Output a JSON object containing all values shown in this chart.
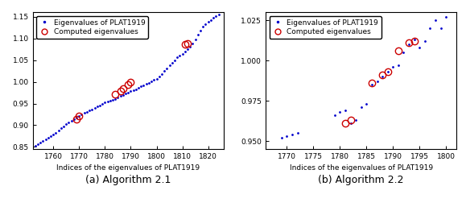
{
  "plot_a": {
    "caption": "(a) Algorithm 2.1",
    "xlabel": "Indices of the eigenvalues of PLAT1919",
    "xlim": [
      1752,
      1826
    ],
    "ylim": [
      0.845,
      1.16
    ],
    "xticks": [
      1760,
      1770,
      1780,
      1790,
      1800,
      1810,
      1820
    ],
    "yticks": [
      0.85,
      0.9,
      0.95,
      1.0,
      1.05,
      1.1,
      1.15
    ],
    "bg_dots_x": [
      1753,
      1754,
      1755,
      1756,
      1757,
      1758,
      1759,
      1760,
      1761,
      1762,
      1763,
      1764,
      1765,
      1766,
      1767,
      1768,
      1769,
      1770,
      1771,
      1772,
      1773,
      1774,
      1775,
      1776,
      1777,
      1778,
      1779,
      1780,
      1781,
      1782,
      1783,
      1784,
      1785,
      1786,
      1787,
      1788,
      1789,
      1790,
      1791,
      1792,
      1793,
      1794,
      1795,
      1796,
      1797,
      1798,
      1799,
      1800,
      1801,
      1802,
      1803,
      1804,
      1805,
      1806,
      1807,
      1808,
      1809,
      1810,
      1811,
      1812,
      1813,
      1814,
      1815,
      1816,
      1817,
      1818,
      1819,
      1820,
      1821,
      1822,
      1823,
      1824
    ],
    "bg_dots_y": [
      0.852,
      0.856,
      0.86,
      0.864,
      0.868,
      0.872,
      0.875,
      0.879,
      0.883,
      0.887,
      0.893,
      0.897,
      0.902,
      0.907,
      0.91,
      0.914,
      0.918,
      0.921,
      0.925,
      0.928,
      0.931,
      0.934,
      0.937,
      0.94,
      0.943,
      0.946,
      0.949,
      0.952,
      0.954,
      0.956,
      0.958,
      0.961,
      0.964,
      0.967,
      0.97,
      0.973,
      0.975,
      0.978,
      0.98,
      0.983,
      0.986,
      0.989,
      0.992,
      0.995,
      0.998,
      1.001,
      1.004,
      1.007,
      1.012,
      1.018,
      1.025,
      1.031,
      1.038,
      1.044,
      1.05,
      1.056,
      1.06,
      1.065,
      1.07,
      1.075,
      1.08,
      1.089,
      1.098,
      1.108,
      1.118,
      1.127,
      1.133,
      1.138,
      1.143,
      1.148,
      1.152,
      1.155
    ],
    "computed_x": [
      1769,
      1770,
      1784,
      1786,
      1787,
      1789,
      1790,
      1811,
      1812
    ],
    "computed_y": [
      0.914,
      0.921,
      0.972,
      0.978,
      0.985,
      0.993,
      1.0,
      1.086,
      1.089
    ]
  },
  "plot_b": {
    "caption": "(b) Algorithm 2.2",
    "xlabel": "Indices of the eigenvalues of PLAT1919",
    "xlim": [
      1766,
      1802
    ],
    "ylim": [
      0.945,
      1.03
    ],
    "xticks": [
      1770,
      1775,
      1780,
      1785,
      1790,
      1795,
      1800
    ],
    "yticks": [
      0.95,
      0.975,
      1.0,
      1.025
    ],
    "bg_dots_x": [
      1769,
      1770,
      1771,
      1772,
      1779,
      1780,
      1781,
      1782,
      1783,
      1784,
      1785,
      1786,
      1787,
      1788,
      1789,
      1790,
      1791,
      1792,
      1793,
      1794,
      1795,
      1796,
      1797,
      1798,
      1799,
      1800
    ],
    "bg_dots_y": [
      0.952,
      0.953,
      0.954,
      0.955,
      0.966,
      0.968,
      0.969,
      0.961,
      0.963,
      0.971,
      0.973,
      0.985,
      0.987,
      0.99,
      0.993,
      0.996,
      0.997,
      1.005,
      1.01,
      1.013,
      1.008,
      1.012,
      1.02,
      1.025,
      1.02,
      1.027
    ],
    "computed_x": [
      1781,
      1782,
      1786,
      1788,
      1789,
      1791,
      1793,
      1794
    ],
    "computed_y": [
      0.961,
      0.963,
      0.986,
      0.991,
      0.993,
      1.006,
      1.011,
      1.012
    ]
  },
  "dot_color": "#0000cc",
  "circle_color": "#cc0000",
  "legend_dot_label": "Eigenvalues of PLAT1919",
  "legend_circle_label": "Computed eigenvalues",
  "caption_fontsize": 9,
  "label_fontsize": 6.5,
  "tick_fontsize": 6.5,
  "legend_fontsize": 6.5
}
